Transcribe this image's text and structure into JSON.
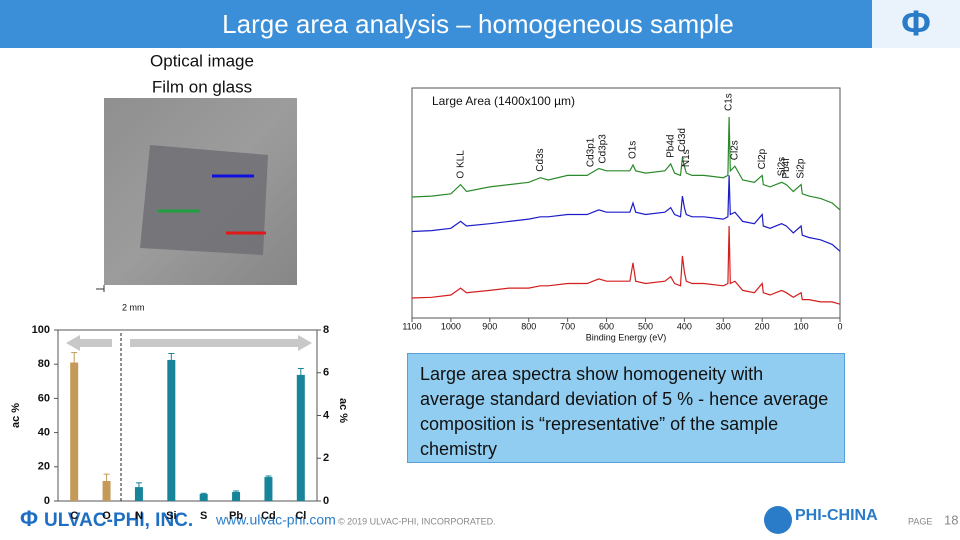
{
  "header": {
    "title": "Large area analysis – homogeneous sample",
    "logo": "Φ"
  },
  "optical_image": {
    "title_lines": [
      "Optical image",
      "Film on glass"
    ],
    "scale_bar": "2 mm"
  },
  "chart_data": [
    {
      "type": "line",
      "title": "Large Area (1400x100 µm)",
      "xlabel": "Binding Energy (eV)",
      "xlim": [
        1100,
        0
      ],
      "xticks": [
        1100,
        1000,
        900,
        800,
        700,
        600,
        500,
        400,
        300,
        200,
        100,
        0
      ],
      "ylim": [
        0,
        100
      ],
      "x": [
        1100,
        1050,
        1000,
        975,
        960,
        900,
        850,
        800,
        770,
        750,
        700,
        650,
        620,
        600,
        560,
        540,
        532,
        525,
        500,
        450,
        435,
        425,
        410,
        405,
        400,
        395,
        380,
        350,
        300,
        288,
        285,
        282,
        270,
        250,
        220,
        200,
        197,
        180,
        150,
        138,
        120,
        100,
        97,
        80,
        50,
        20,
        0
      ],
      "series": [
        {
          "color": "#2a8a2a",
          "values": [
            52.6,
            53,
            54,
            58,
            55,
            57,
            58,
            59,
            61,
            60,
            62,
            62,
            65,
            64,
            64,
            64,
            66.5,
            64,
            63,
            64,
            67,
            63,
            62,
            69.6,
            66,
            63,
            62,
            62,
            61,
            62,
            87.4,
            64,
            66,
            60,
            59,
            62,
            58,
            57,
            59,
            58,
            55,
            58,
            54,
            53,
            52,
            50,
            47
          ]
        },
        {
          "color": "#1c1cc8",
          "values": [
            37.6,
            38,
            39,
            42,
            40,
            41,
            42,
            43,
            44,
            44,
            45,
            45,
            47,
            46,
            46,
            46,
            50,
            46,
            45,
            46,
            48,
            45,
            44,
            53,
            48,
            45,
            44,
            44,
            43,
            44,
            62,
            45,
            46,
            42,
            41,
            45,
            40,
            39,
            41,
            40,
            37,
            40,
            36,
            35,
            34,
            32,
            29
          ]
        },
        {
          "color": "#d41e1e",
          "values": [
            8.7,
            9,
            10,
            13,
            11,
            12,
            13,
            13,
            14,
            14,
            15,
            15,
            17,
            16,
            16,
            16,
            24,
            16,
            15,
            16,
            18,
            15,
            14,
            27,
            20,
            16,
            15,
            15,
            14,
            15,
            40,
            15,
            16,
            12,
            11,
            15,
            11,
            10,
            12,
            11,
            9,
            11,
            8,
            8,
            7,
            7,
            6
          ]
        }
      ],
      "annotations": [
        {
          "text": "O KLL",
          "x": 975
        },
        {
          "text": "Cd3s",
          "x": 770
        },
        {
          "text": "Cd3p1",
          "x": 640
        },
        {
          "text": "Cd3p3",
          "x": 610
        },
        {
          "text": "O1s",
          "x": 532
        },
        {
          "text": "Pb4d",
          "x": 435
        },
        {
          "text": "Cd3d",
          "x": 405
        },
        {
          "text": "N1s",
          "x": 395
        },
        {
          "text": "C1s",
          "x": 285
        },
        {
          "text": "Cl2s",
          "x": 270
        },
        {
          "text": "Cl2p",
          "x": 200
        },
        {
          "text": "Si2s",
          "x": 150
        },
        {
          "text": "Pb4f",
          "x": 138
        },
        {
          "text": "Si2p",
          "x": 100
        }
      ]
    },
    {
      "type": "bar",
      "categories": [
        "C",
        "O",
        "N",
        "Si",
        "S",
        "Pb",
        "Cd",
        "Cl"
      ],
      "ylim": [
        0,
        100
      ],
      "yticks": [
        0,
        20,
        40,
        60,
        80,
        100
      ],
      "ylabel": "ac %",
      "y2lim": [
        0,
        8
      ],
      "y2ticks": [
        0,
        2,
        4,
        6,
        8
      ],
      "y2label": "ac %",
      "series": [
        {
          "color": "#c49a5a",
          "values": [
            81,
            11.7,
            null,
            null,
            null,
            null,
            null,
            null
          ],
          "errors": [
            5.8,
            4,
            null,
            null,
            null,
            null,
            null,
            null
          ]
        },
        {
          "color": "#17849a",
          "axis": "y2",
          "values": [
            null,
            null,
            0.65,
            6.6,
            0.33,
            0.42,
            1.12,
            5.9
          ],
          "errors": [
            null,
            null,
            0.2,
            0.3,
            0.03,
            0.05,
            0.05,
            0.3
          ]
        }
      ]
    }
  ],
  "note": "Large area spectra show homogeneity with average standard deviation of 5 % - hence average composition is “representative” of the sample chemistry",
  "footer": {
    "logo": "Φ",
    "company": "ULVAC-PHI, INC.",
    "website": "www.ulvac-phi.com",
    "copyright": "© 2019 ULVAC-PHI, INCORPORATED.",
    "partner": "PHI-CHINA",
    "page_label": "PAGE",
    "page_number": 18
  }
}
